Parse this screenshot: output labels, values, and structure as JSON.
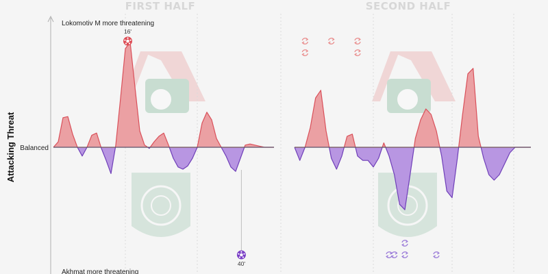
{
  "chart_data": {
    "type": "area",
    "title": "",
    "ylabel": "Attacking Threat",
    "y_top_label": "Lokomotiv M more threatening",
    "y_bottom_label": "Akhmat more threatening",
    "baseline_label": "Balanced",
    "ylim": [
      -1,
      1
    ],
    "halves": [
      {
        "name": "FIRST HALF",
        "x": [
          0,
          1,
          2,
          3,
          4,
          5,
          6,
          7,
          8,
          9,
          10,
          11,
          12,
          13,
          14,
          15,
          16,
          17,
          18,
          19,
          20,
          21,
          22,
          23,
          24,
          25,
          26,
          27,
          28,
          29,
          30,
          31,
          32,
          33,
          34,
          35,
          36,
          37,
          38,
          39,
          40,
          41,
          42,
          43,
          44,
          45,
          46
        ],
        "values": [
          0,
          0.05,
          0.27,
          0.28,
          0.12,
          0,
          -0.08,
          0,
          0.11,
          0.13,
          -0.01,
          -0.12,
          -0.24,
          0.02,
          0.45,
          0.9,
          0.96,
          0.55,
          0.15,
          0.02,
          -0.01,
          0.05,
          0.1,
          0.13,
          0.02,
          -0.1,
          -0.18,
          -0.2,
          -0.17,
          -0.1,
          0,
          0.22,
          0.32,
          0.25,
          0.08,
          0,
          -0.08,
          -0.18,
          -0.22,
          -0.1,
          0.02,
          0.03,
          0.02,
          0.01,
          0.0,
          0.0,
          0.0
        ],
        "goals": [
          {
            "minute": "16'",
            "team": "Lokomotiv M",
            "x": 15.5
          },
          {
            "minute": "40'",
            "team": "Akhmat",
            "x": 39.2
          }
        ],
        "substitutions": []
      },
      {
        "name": "SECOND HALF",
        "x": [
          0,
          1,
          2,
          3,
          4,
          5,
          6,
          7,
          8,
          9,
          10,
          11,
          12,
          13,
          14,
          15,
          16,
          17,
          18,
          19,
          20,
          21,
          22,
          23,
          24,
          25,
          26,
          27,
          28,
          29,
          30,
          31,
          32,
          33,
          34,
          35,
          36,
          37,
          38,
          39,
          40,
          41,
          42,
          43,
          44,
          45
        ],
        "values": [
          0,
          -0.12,
          0,
          0.18,
          0.45,
          0.52,
          0.15,
          -0.1,
          -0.2,
          -0.08,
          0.1,
          0.12,
          -0.08,
          -0.12,
          -0.12,
          -0.18,
          -0.1,
          0.04,
          -0.08,
          -0.25,
          -0.52,
          -0.57,
          -0.25,
          0.08,
          0.25,
          0.35,
          0.3,
          0.15,
          -0.08,
          -0.4,
          -0.46,
          -0.1,
          0.3,
          0.67,
          0.72,
          0.1,
          -0.1,
          -0.25,
          -0.3,
          -0.25,
          -0.15,
          -0.05,
          0,
          0,
          0,
          0
        ],
        "goals": [],
        "substitutions": [
          {
            "team": "Lokomotiv M",
            "minutes": [
              47,
              47,
              52,
              57,
              57
            ]
          },
          {
            "team": "Akhmat",
            "minutes": [
              63,
              64,
              66,
              66,
              72
            ]
          }
        ]
      }
    ]
  },
  "colors": {
    "home": "#eba0a3",
    "home_line": "#d9505a",
    "away": "#b896e2",
    "away_line": "#6f3fb8",
    "background": "#f5f5f5"
  },
  "icons": {
    "home_crest": "lokomotiv-crest-icon",
    "away_crest": "akhmat-crest-icon",
    "goal": "soccer-ball-icon",
    "substitution": "substitution-icon"
  }
}
